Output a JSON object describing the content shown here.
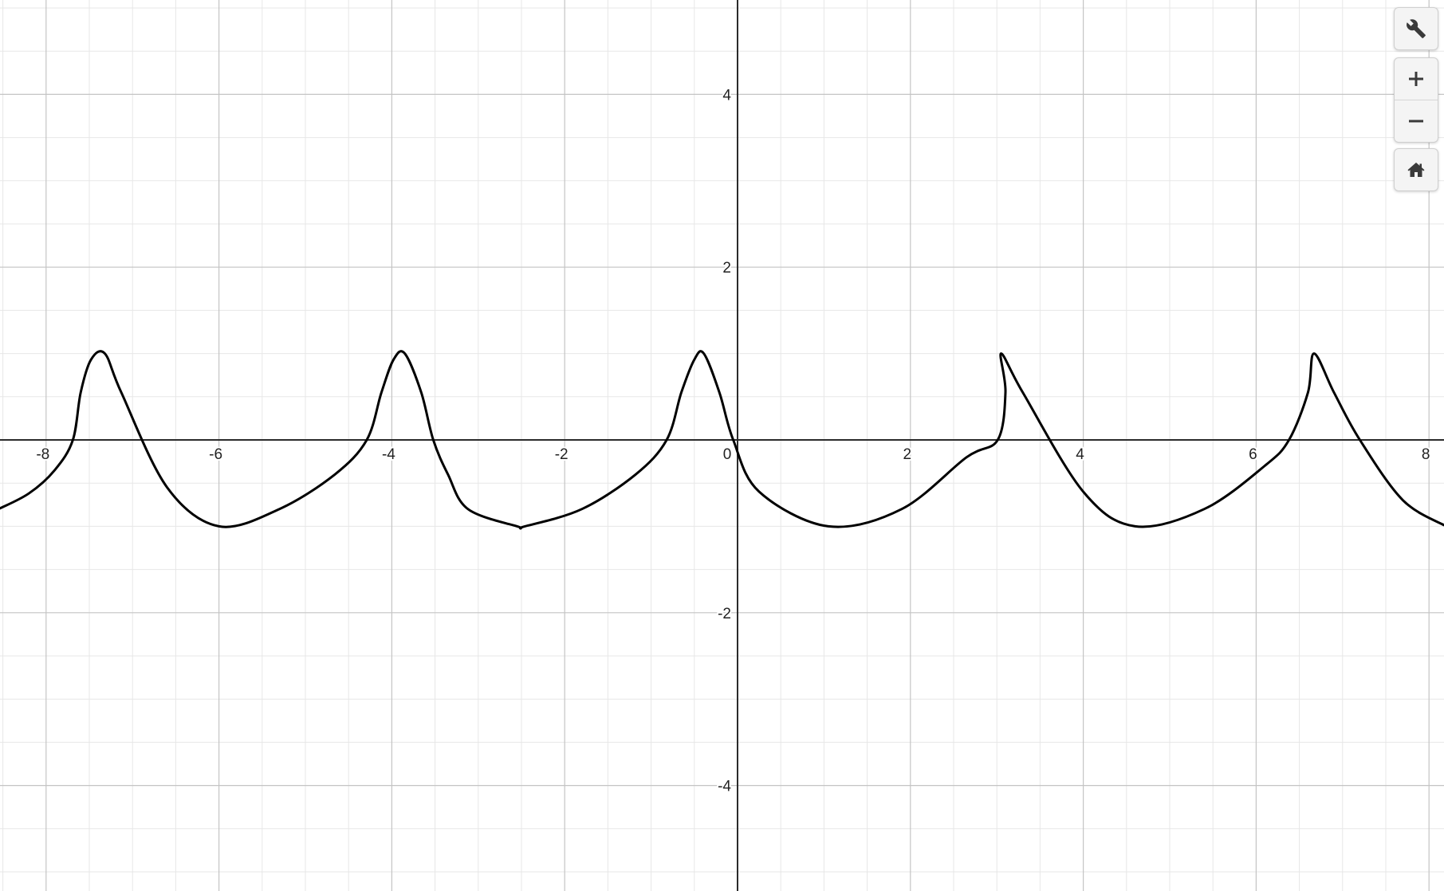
{
  "chart_data": {
    "type": "line",
    "title": "",
    "xlabel": "",
    "ylabel": "",
    "xlim": [
      -8.55,
      8.2
    ],
    "ylim": [
      -5.2,
      5.1
    ],
    "grid": true,
    "x_ticks": [
      -8,
      -6,
      -4,
      -2,
      0,
      2,
      4,
      6,
      8
    ],
    "x_tick_labels": [
      "-8",
      "-6",
      "-4",
      "-2",
      "0",
      "2",
      "4",
      "6",
      "8"
    ],
    "y_ticks": [
      4,
      2,
      -2,
      -4
    ],
    "y_tick_labels": [
      "4",
      "2",
      "-2",
      "-4"
    ],
    "series": [
      {
        "color": "#000000",
        "curve": "parametric trochoid (looped)",
        "x": [
          -8.55,
          -8.2,
          -7.9,
          -7.69,
          -7.6,
          -7.48,
          -7.32,
          -7.13,
          -6.6,
          -6.0,
          -5.3,
          -4.66,
          -4.29,
          -4.12,
          -3.98,
          -3.85,
          -3.66,
          -3.52,
          -3.35,
          -3.12,
          -2.55,
          -2.46,
          -1.8,
          -1.18,
          -0.82,
          -0.65,
          -0.5,
          -0.39,
          -0.21,
          -0.05,
          0.25,
          1.05,
          1.9,
          2.65,
          3.01,
          3.1,
          3.05,
          3.3,
          4.0,
          4.6,
          5.4,
          6.1,
          6.38,
          6.6,
          6.67,
          6.9,
          7.2,
          7.7,
          8.2
        ],
        "y": [
          -0.8,
          -0.62,
          -0.35,
          0.0,
          0.55,
          0.93,
          1.0,
          0.55,
          -0.55,
          -1.0,
          -0.8,
          -0.4,
          0.0,
          0.55,
          0.93,
          1.0,
          0.55,
          0.0,
          -0.4,
          -0.8,
          -1.0,
          -1.0,
          -0.8,
          -0.4,
          0.0,
          0.55,
          0.93,
          1.0,
          0.55,
          0.0,
          -0.6,
          -1.0,
          -0.8,
          -0.2,
          0.0,
          0.55,
          1.0,
          0.55,
          -0.6,
          -1.0,
          -0.8,
          -0.3,
          0.0,
          0.55,
          1.0,
          0.55,
          0.0,
          -0.7,
          -1.0
        ]
      }
    ]
  },
  "toolbar": {
    "settings_icon": "wrench-icon",
    "zoom_in_icon": "plus-icon",
    "zoom_out_icon": "minus-icon",
    "home_icon": "home-icon"
  }
}
